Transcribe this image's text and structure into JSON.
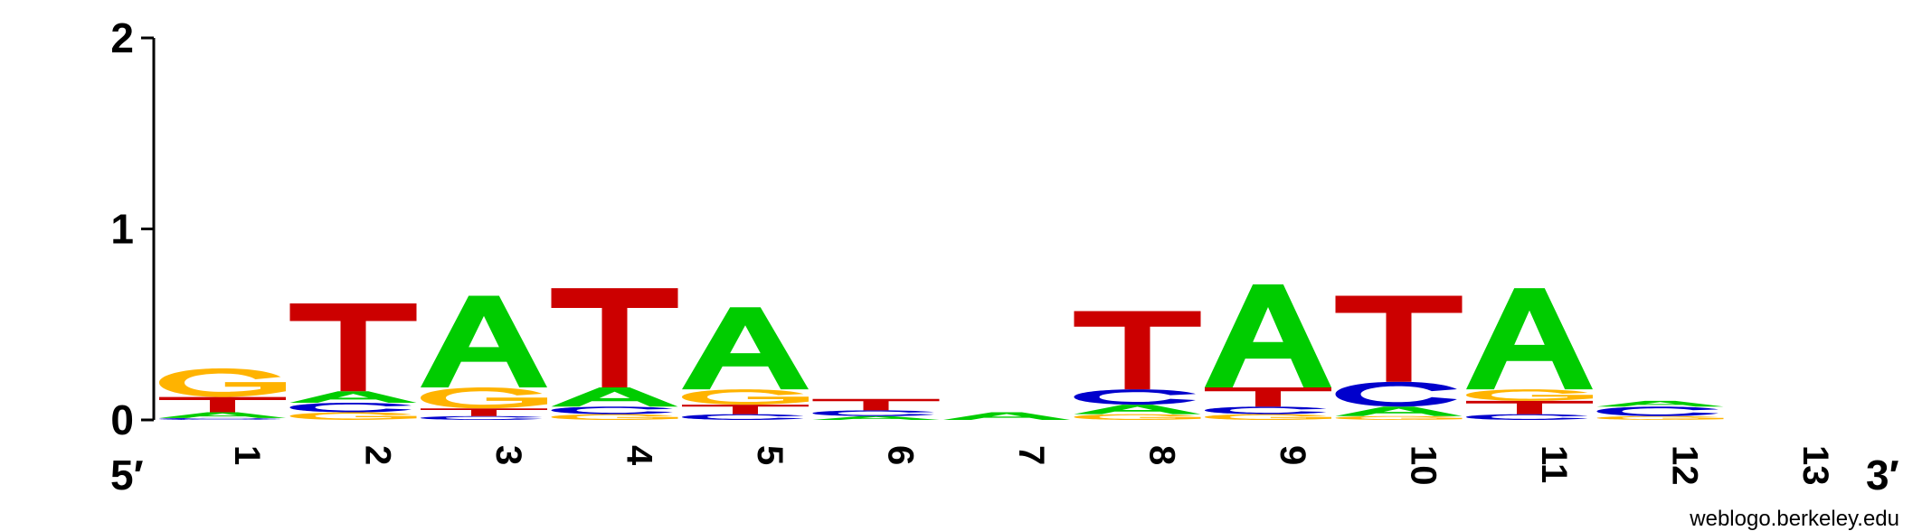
{
  "chart_data": {
    "type": "sequence-logo",
    "ylabel": "",
    "ylim": [
      0,
      2
    ],
    "y_ticks": [
      "0",
      "1",
      "2"
    ],
    "x_ticks": [
      "1",
      "2",
      "3",
      "4",
      "5",
      "6",
      "7",
      "8",
      "9",
      "10",
      "11",
      "12",
      "13"
    ],
    "end_labels": {
      "five_prime": "5′",
      "three_prime": "3′"
    },
    "credit": "weblogo.berkeley.edu",
    "colors": {
      "A": "#00cc00",
      "C": "#0000cc",
      "G": "#ffb300",
      "T": "#cc0000"
    },
    "positions": [
      {
        "pos": "1",
        "stack": [
          {
            "base": "C",
            "height": 0.01
          },
          {
            "base": "A",
            "height": 0.03
          },
          {
            "base": "T",
            "height": 0.08
          },
          {
            "base": "G",
            "height": 0.15
          }
        ]
      },
      {
        "pos": "2",
        "stack": [
          {
            "base": "G",
            "height": 0.04
          },
          {
            "base": "C",
            "height": 0.05
          },
          {
            "base": "A",
            "height": 0.06
          },
          {
            "base": "T",
            "height": 0.46
          }
        ]
      },
      {
        "pos": "3",
        "stack": [
          {
            "base": "C",
            "height": 0.02
          },
          {
            "base": "T",
            "height": 0.04
          },
          {
            "base": "G",
            "height": 0.11
          },
          {
            "base": "A",
            "height": 0.48
          }
        ]
      },
      {
        "pos": "4",
        "stack": [
          {
            "base": "G",
            "height": 0.03
          },
          {
            "base": "C",
            "height": 0.04
          },
          {
            "base": "A",
            "height": 0.1
          },
          {
            "base": "T",
            "height": 0.52
          }
        ]
      },
      {
        "pos": "5",
        "stack": [
          {
            "base": "C",
            "height": 0.03
          },
          {
            "base": "T",
            "height": 0.05
          },
          {
            "base": "G",
            "height": 0.08
          },
          {
            "base": "A",
            "height": 0.43
          }
        ]
      },
      {
        "pos": "6",
        "stack": [
          {
            "base": "A",
            "height": 0.02
          },
          {
            "base": "C",
            "height": 0.03
          },
          {
            "base": "T",
            "height": 0.06
          }
        ]
      },
      {
        "pos": "7",
        "stack": [
          {
            "base": "A",
            "height": 0.04
          }
        ]
      },
      {
        "pos": "8",
        "stack": [
          {
            "base": "G",
            "height": 0.03
          },
          {
            "base": "A",
            "height": 0.05
          },
          {
            "base": "C",
            "height": 0.08
          },
          {
            "base": "T",
            "height": 0.41
          }
        ]
      },
      {
        "pos": "9",
        "stack": [
          {
            "base": "G",
            "height": 0.03
          },
          {
            "base": "C",
            "height": 0.04
          },
          {
            "base": "T",
            "height": 0.1
          },
          {
            "base": "A",
            "height": 0.54
          }
        ]
      },
      {
        "pos": "10",
        "stack": [
          {
            "base": "G",
            "height": 0.02
          },
          {
            "base": "A",
            "height": 0.05
          },
          {
            "base": "C",
            "height": 0.13
          },
          {
            "base": "T",
            "height": 0.45
          }
        ]
      },
      {
        "pos": "11",
        "stack": [
          {
            "base": "C",
            "height": 0.03
          },
          {
            "base": "T",
            "height": 0.07
          },
          {
            "base": "G",
            "height": 0.06
          },
          {
            "base": "A",
            "height": 0.53
          }
        ]
      },
      {
        "pos": "12",
        "stack": [
          {
            "base": "G",
            "height": 0.02
          },
          {
            "base": "C",
            "height": 0.05
          },
          {
            "base": "A",
            "height": 0.03
          }
        ]
      },
      {
        "pos": "13",
        "stack": []
      }
    ]
  }
}
